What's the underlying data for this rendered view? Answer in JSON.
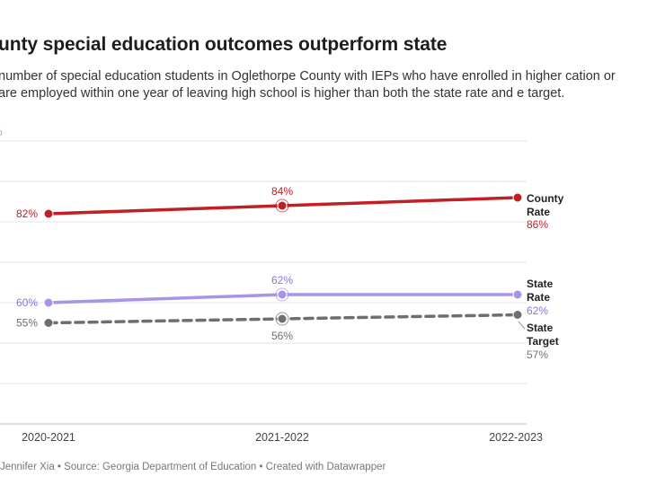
{
  "header": {
    "title": "unty special education outcomes outperform state",
    "subtitle": "number of special education students in Oglethorpe County with IEPs who have enrolled in higher cation or are employed within one year of leaving high school is higher than both the state rate and e target."
  },
  "footer": {
    "byline": "Jennifer Xia",
    "sep1": " • ",
    "source": "Source: Georgia Department of Education",
    "sep2": " • ",
    "credit": "Created with Datawrapper"
  },
  "chart_data": {
    "type": "line",
    "categories": [
      "2020-2021",
      "2021-2022",
      "2022-2023"
    ],
    "ylim": [
      30,
      100
    ],
    "y_tick_label_visible": "%",
    "grid": true,
    "legend": "direct labels at line ends (right)",
    "series": [
      {
        "key": "county",
        "label_lines": [
          "County",
          "Rate"
        ],
        "values": [
          82,
          84,
          86
        ],
        "value_labels": [
          "82%",
          "84%",
          "86%"
        ],
        "color": "#c01f25",
        "dashed": false
      },
      {
        "key": "state",
        "label_lines": [
          "State",
          "Rate"
        ],
        "values": [
          60,
          62,
          62
        ],
        "value_labels": [
          "60%",
          "62%",
          "62%"
        ],
        "color": "#a993e8",
        "dashed": false
      },
      {
        "key": "target",
        "label_lines": [
          "State",
          "Target"
        ],
        "values": [
          55,
          56,
          57
        ],
        "value_labels": [
          "55%",
          "56%",
          "57%"
        ],
        "color": "#6e6e6e",
        "dashed": true
      }
    ]
  }
}
